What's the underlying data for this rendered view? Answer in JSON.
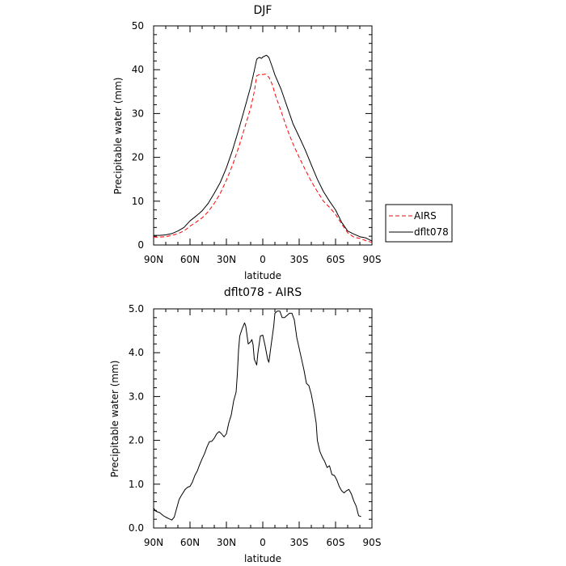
{
  "chart_data": [
    {
      "type": "line",
      "title": "DJF",
      "xlabel": "latitude",
      "ylabel": "Precipitable water  (mm)",
      "xlim": [
        90,
        -90
      ],
      "ylim": [
        0,
        50
      ],
      "x_ticks": [
        {
          "value": 90,
          "label": "90N"
        },
        {
          "value": 60,
          "label": "60N"
        },
        {
          "value": 30,
          "label": "30N"
        },
        {
          "value": 0,
          "label": "0"
        },
        {
          "value": -30,
          "label": "30S"
        },
        {
          "value": -60,
          "label": "60S"
        },
        {
          "value": -90,
          "label": "90S"
        }
      ],
      "y_ticks": [
        {
          "value": 0,
          "label": "0"
        },
        {
          "value": 10,
          "label": "10"
        },
        {
          "value": 20,
          "label": "20"
        },
        {
          "value": 30,
          "label": "30"
        },
        {
          "value": 40,
          "label": "40"
        },
        {
          "value": 50,
          "label": "50"
        }
      ],
      "grid": false,
      "legend_position": "outside-right",
      "series": [
        {
          "name": "AIRS",
          "color": "#ff0000",
          "dash": true,
          "points": [
            [
              90,
              1.8
            ],
            [
              85,
              1.8
            ],
            [
              80,
              1.9
            ],
            [
              75,
              2.2
            ],
            [
              70,
              2.6
            ],
            [
              65,
              3.2
            ],
            [
              60,
              4.3
            ],
            [
              55,
              5.2
            ],
            [
              50,
              6.2
            ],
            [
              45,
              7.6
            ],
            [
              40,
              9.5
            ],
            [
              35,
              11.8
            ],
            [
              30,
              14.8
            ],
            [
              25,
              18.2
            ],
            [
              20,
              22.2
            ],
            [
              15,
              26.7
            ],
            [
              10,
              31.3
            ],
            [
              7,
              35
            ],
            [
              5,
              38.6
            ],
            [
              2,
              39
            ],
            [
              0,
              38.9
            ],
            [
              -2,
              39
            ],
            [
              -5,
              38.3
            ],
            [
              -8,
              36.5
            ],
            [
              -10,
              34.5
            ],
            [
              -15,
              30.6
            ],
            [
              -20,
              26.5
            ],
            [
              -25,
              23
            ],
            [
              -30,
              20
            ],
            [
              -35,
              17.2
            ],
            [
              -40,
              14.5
            ],
            [
              -45,
              12.2
            ],
            [
              -50,
              10
            ],
            [
              -55,
              8.6
            ],
            [
              -60,
              7
            ],
            [
              -65,
              4.8
            ],
            [
              -70,
              2.8
            ],
            [
              -75,
              1.8
            ],
            [
              -80,
              1.5
            ],
            [
              -85,
              1
            ],
            [
              -90,
              0.6
            ]
          ]
        },
        {
          "name": "dflt078",
          "color": "#000000",
          "dash": false,
          "points": [
            [
              90,
              2.2
            ],
            [
              85,
              2.2
            ],
            [
              80,
              2.3
            ],
            [
              75,
              2.6
            ],
            [
              70,
              3.2
            ],
            [
              65,
              4
            ],
            [
              60,
              5.5
            ],
            [
              55,
              6.6
            ],
            [
              50,
              7.8
            ],
            [
              45,
              9.5
            ],
            [
              40,
              11.8
            ],
            [
              35,
              14.3
            ],
            [
              30,
              17.6
            ],
            [
              25,
              21.6
            ],
            [
              20,
              26.2
            ],
            [
              15,
              31.1
            ],
            [
              10,
              36.1
            ],
            [
              7,
              39.8
            ],
            [
              5,
              42.4
            ],
            [
              3,
              42.8
            ],
            [
              1,
              42.6
            ],
            [
              0,
              42.9
            ],
            [
              -3,
              43.3
            ],
            [
              -5,
              42.8
            ],
            [
              -8,
              40.5
            ],
            [
              -10,
              38.8
            ],
            [
              -15,
              35.6
            ],
            [
              -20,
              31.6
            ],
            [
              -25,
              27.6
            ],
            [
              -30,
              24.7
            ],
            [
              -35,
              21.7
            ],
            [
              -40,
              18.3
            ],
            [
              -45,
              15
            ],
            [
              -50,
              12.2
            ],
            [
              -55,
              10
            ],
            [
              -60,
              8
            ],
            [
              -65,
              5.2
            ],
            [
              -70,
              3.2
            ],
            [
              -75,
              2.5
            ],
            [
              -80,
              1.9
            ],
            [
              -85,
              1.6
            ],
            [
              -90,
              0.9
            ]
          ]
        }
      ]
    },
    {
      "type": "line",
      "title": "dflt078 - AIRS",
      "xlabel": "latitude",
      "ylabel": "Precipitable water  (mm)",
      "xlim": [
        90,
        -90
      ],
      "ylim": [
        0,
        5
      ],
      "x_ticks": [
        {
          "value": 90,
          "label": "90N"
        },
        {
          "value": 60,
          "label": "60N"
        },
        {
          "value": 30,
          "label": "30N"
        },
        {
          "value": 0,
          "label": "0"
        },
        {
          "value": -30,
          "label": "30S"
        },
        {
          "value": -60,
          "label": "60S"
        },
        {
          "value": -90,
          "label": "90S"
        }
      ],
      "y_ticks": [
        {
          "value": 0,
          "label": "0.0"
        },
        {
          "value": 1,
          "label": "1.0"
        },
        {
          "value": 2,
          "label": "2.0"
        },
        {
          "value": 3,
          "label": "3.0"
        },
        {
          "value": 4,
          "label": "4.0"
        },
        {
          "value": 5,
          "label": "5.0"
        }
      ],
      "grid": false,
      "series": [
        {
          "color": "#000000",
          "dash": false,
          "points": [
            [
              90,
              0.45
            ],
            [
              88,
              0.38
            ],
            [
              85,
              0.35
            ],
            [
              82,
              0.28
            ],
            [
              80,
              0.25
            ],
            [
              78,
              0.22
            ],
            [
              75,
              0.18
            ],
            [
              73,
              0.25
            ],
            [
              71,
              0.45
            ],
            [
              69,
              0.65
            ],
            [
              67,
              0.75
            ],
            [
              64,
              0.88
            ],
            [
              62,
              0.93
            ],
            [
              60,
              0.95
            ],
            [
              58,
              1.05
            ],
            [
              56,
              1.2
            ],
            [
              54,
              1.3
            ],
            [
              52,
              1.45
            ],
            [
              50,
              1.58
            ],
            [
              48,
              1.7
            ],
            [
              46,
              1.85
            ],
            [
              44,
              1.97
            ],
            [
              42,
              1.98
            ],
            [
              40,
              2.05
            ],
            [
              38,
              2.15
            ],
            [
              36,
              2.2
            ],
            [
              34,
              2.15
            ],
            [
              32,
              2.08
            ],
            [
              30,
              2.15
            ],
            [
              28,
              2.4
            ],
            [
              26,
              2.58
            ],
            [
              24,
              2.9
            ],
            [
              22,
              3.1
            ],
            [
              21,
              3.5
            ],
            [
              20,
              4.05
            ],
            [
              19,
              4.38
            ],
            [
              17,
              4.55
            ],
            [
              15,
              4.68
            ],
            [
              14,
              4.6
            ],
            [
              12,
              4.2
            ],
            [
              10,
              4.25
            ],
            [
              9,
              4.3
            ],
            [
              8,
              4.18
            ],
            [
              7,
              3.85
            ],
            [
              5,
              3.72
            ],
            [
              4,
              4.0
            ],
            [
              2,
              4.38
            ],
            [
              0,
              4.4
            ],
            [
              -2,
              4.15
            ],
            [
              -4,
              3.85
            ],
            [
              -5,
              3.78
            ],
            [
              -7,
              4.2
            ],
            [
              -9,
              4.6
            ],
            [
              -10,
              4.9
            ],
            [
              -12,
              4.95
            ],
            [
              -14,
              4.95
            ],
            [
              -16,
              4.8
            ],
            [
              -18,
              4.8
            ],
            [
              -20,
              4.85
            ],
            [
              -22,
              4.9
            ],
            [
              -24,
              4.9
            ],
            [
              -26,
              4.75
            ],
            [
              -28,
              4.35
            ],
            [
              -30,
              4.1
            ],
            [
              -32,
              3.85
            ],
            [
              -34,
              3.6
            ],
            [
              -36,
              3.3
            ],
            [
              -38,
              3.25
            ],
            [
              -40,
              3.05
            ],
            [
              -42,
              2.75
            ],
            [
              -44,
              2.4
            ],
            [
              -45,
              2.0
            ],
            [
              -47,
              1.75
            ],
            [
              -49,
              1.62
            ],
            [
              -51,
              1.52
            ],
            [
              -53,
              1.38
            ],
            [
              -55,
              1.42
            ],
            [
              -57,
              1.22
            ],
            [
              -59,
              1.2
            ],
            [
              -61,
              1.1
            ],
            [
              -63,
              0.95
            ],
            [
              -65,
              0.85
            ],
            [
              -67,
              0.8
            ],
            [
              -69,
              0.85
            ],
            [
              -71,
              0.88
            ],
            [
              -73,
              0.78
            ],
            [
              -75,
              0.62
            ],
            [
              -77,
              0.5
            ],
            [
              -79,
              0.28
            ],
            [
              -81,
              0.26
            ]
          ]
        }
      ]
    }
  ]
}
